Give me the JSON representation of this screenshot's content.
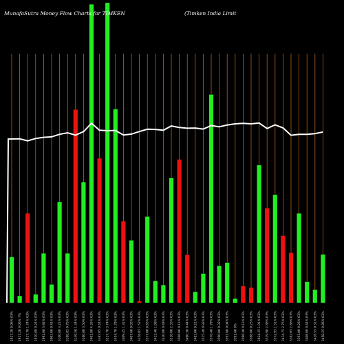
{
  "header": {
    "title_left": "MunafaSutra  Money Flow  Charts for TIMKEN",
    "title_right": "(Timken  India  Limit"
  },
  "colors": {
    "background": "#000000",
    "up_bar": "#22ee22",
    "down_bar": "#ee1111",
    "grid": "#b5651d",
    "line": "#ffffff",
    "tick_text": "#d8d8d8",
    "title_text": "#ffffff"
  },
  "chart_data": {
    "type": "bar",
    "title": "MunafaSutra  Money Flow  Charts for TIMKEN",
    "categories": [
      "2917.20 0.06% 03%",
      "2917.20 0.06% 7%",
      "2917.70 1.74% 03%",
      "2910.00 0.24% 03%",
      "2991.00 3.92% 03%",
      "3003.00 0.41% 03%",
      "3100.00 3.21% 03%",
      "3188.85 0.75% 03%",
      "3149.50 1.34% 03%",
      "3260.00 3.50% 03%",
      "3401.90 4.35% 03%",
      "3387.05 0.44% 03%",
      "3517.70 3.74% 03%",
      "3454.70 1.79% 03%",
      "3409.45 1.31% 03%",
      "3407.60 0.03% 03%",
      "3356.05 1.52% 03%",
      "3377.00 0.63% 03%",
      "3413.40 1.08% 03%",
      "3430.00 0.49% 03%",
      "3510.00 2.33% 03%",
      "3506.00 0.11% 03%",
      "3490.50 0.44% 03%",
      "3483.00 0.21% 03%",
      "3515.40 0.93% 03%",
      "3578.40 1.79% 03%",
      "3590.00 0.32% 03%",
      "3591.60 0.04% 03%",
      "3591.60 0%",
      "3596.40 0.13% 03%",
      "3588.00 0.23% 03%",
      "3624.35 1.01% 03%",
      "3519.90 2.88% 03%",
      "3572.95 1.51% 03%",
      "3474.75 2.75% 03%",
      "3382.05 2.66% 03%",
      "3391.00 0.26% 03%",
      "3406.00 0.44% 03%",
      "3416.55 0.31% 03%",
      "3458.25 0.86% 03%"
    ],
    "values": [
      88,
      13,
      172,
      16,
      95,
      35,
      194,
      95,
      372,
      232,
      575,
      278,
      578,
      373,
      157,
      120,
      3,
      166,
      42,
      34,
      240,
      276,
      92,
      21,
      56,
      401,
      71,
      77,
      8,
      32,
      29,
      265,
      182,
      208,
      129,
      96,
      172,
      40,
      25,
      93
    ],
    "directions": [
      "up",
      "up",
      "down",
      "up",
      "up",
      "up",
      "up",
      "up",
      "down",
      "up",
      "up",
      "down",
      "up",
      "up",
      "down",
      "up",
      "down",
      "up",
      "up",
      "up",
      "up",
      "down",
      "down",
      "up",
      "up",
      "up",
      "up",
      "up",
      "up",
      "down",
      "down",
      "up",
      "down",
      "up",
      "down",
      "down",
      "up",
      "up",
      "up",
      "up"
    ],
    "line_values": [
      2917.2,
      2919,
      2902,
      2922,
      2932,
      2936,
      2958,
      2971,
      2951,
      2981,
      3053,
      2993,
      2989,
      2991,
      2952,
      2960,
      2982,
      3002,
      3000,
      2993,
      3030,
      3017,
      3010,
      3012,
      3003,
      3034,
      3022,
      3038,
      3048,
      3052,
      3048,
      3055,
      3008,
      3040,
      3013,
      2950,
      2958,
      2958,
      2964,
      2978
    ],
    "xlabel": "",
    "ylabel": "",
    "grid": true
  }
}
